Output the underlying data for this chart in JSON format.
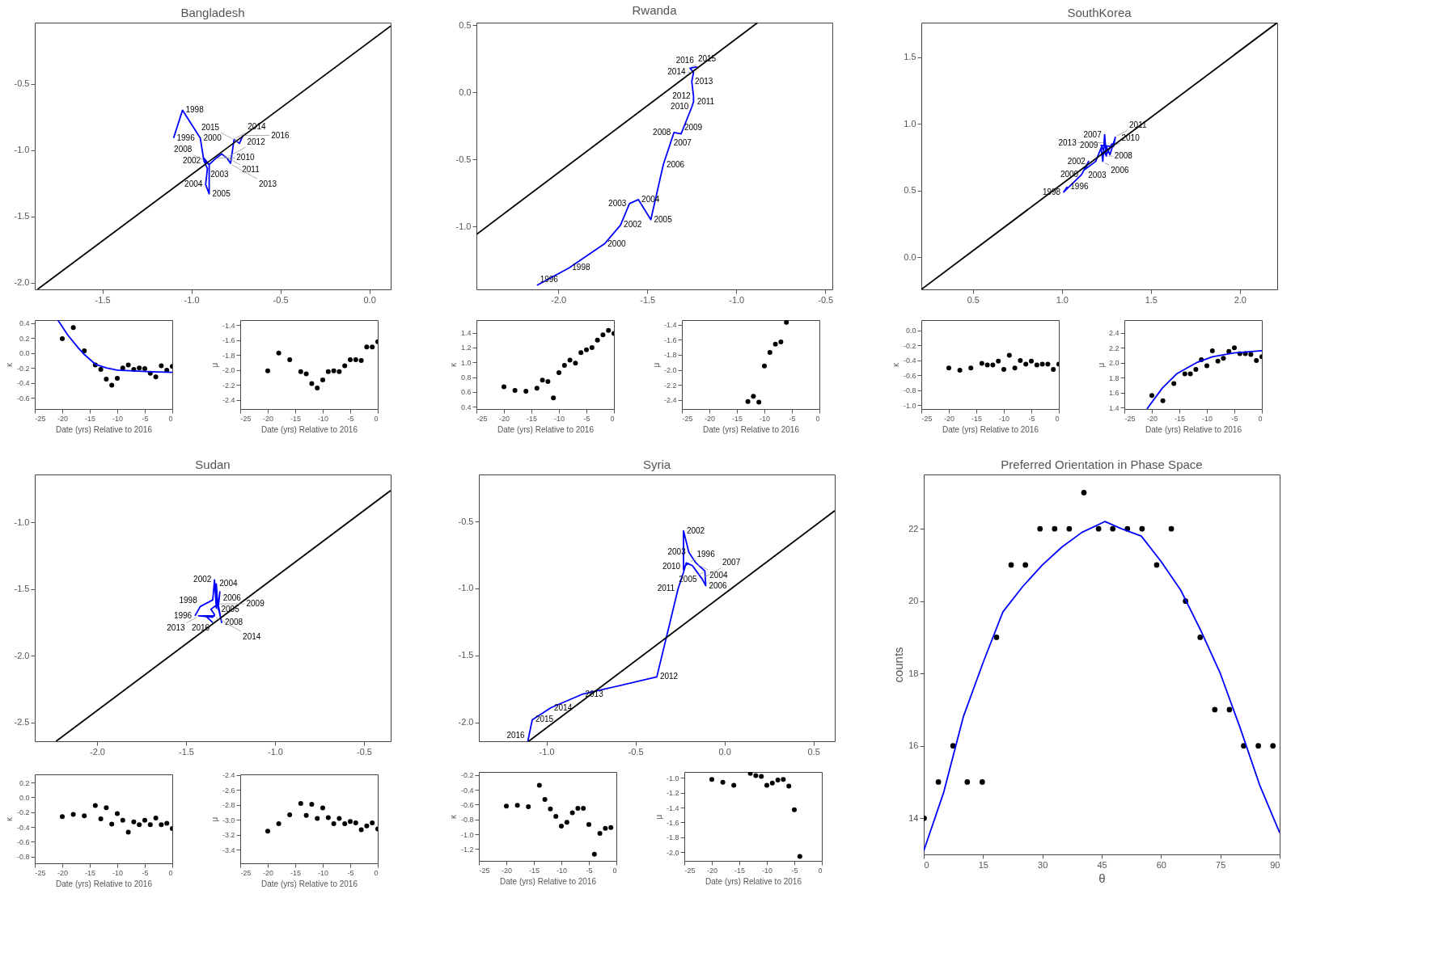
{
  "chart_data": [
    {
      "type": "line",
      "title": "Bangladesh",
      "xlim": [
        -1.88,
        0.12
      ],
      "ylim": [
        -2.05,
        -0.04
      ],
      "xticks": [
        -1.5,
        {
          "value": -1,
          "label": "-1.0"
        },
        -0.5,
        {
          "value": 0,
          "label": "0.0"
        }
      ],
      "yticks": [
        {
          "value": -2,
          "label": "-2.0"
        },
        -1.5,
        {
          "value": -1,
          "label": "-1.0"
        },
        -0.5
      ],
      "series": [
        {
          "color": "#0000ff",
          "x": [
            -1.1,
            -1.05,
            -0.95,
            -0.93,
            -0.91,
            -0.92,
            -0.9,
            -0.9,
            -0.93,
            -0.92,
            -0.9,
            -0.86,
            -0.83,
            -0.8,
            -0.78,
            -0.76,
            -0.73,
            -0.71
          ],
          "values": [
            -0.91,
            -0.7,
            -0.91,
            -1.08,
            -1.14,
            -1.26,
            -1.33,
            -1.11,
            -1.06,
            -1.09,
            -1.11,
            -1.06,
            -1.03,
            -1.06,
            -1.1,
            -0.92,
            -0.95,
            -0.89
          ]
        },
        {
          "color": "#000000",
          "x": [
            -1.865,
            0.12
          ],
          "values": [
            -2.05,
            -0.065
          ]
        }
      ],
      "annotations": [
        {
          "text": "1996",
          "x": -1.1,
          "y": -0.91
        },
        {
          "text": "1998",
          "x": -1.05,
          "y": -0.7
        },
        {
          "text": "2000",
          "x": -0.95,
          "y": -0.91
        },
        {
          "text": "2002",
          "x": -0.93,
          "y": -1.08
        },
        {
          "text": "2003",
          "x": -0.91,
          "y": -1.14
        },
        {
          "text": "2004",
          "x": -0.92,
          "y": -1.26
        },
        {
          "text": "2005",
          "x": -0.9,
          "y": -1.33
        },
        {
          "text": "2008",
          "x": -0.92,
          "y": -1.09
        },
        {
          "text": "2010",
          "x": -0.86,
          "y": -1.06
        },
        {
          "text": "2011",
          "x": -0.83,
          "y": -1.03
        },
        {
          "text": "2012",
          "x": -0.8,
          "y": -1.06
        },
        {
          "text": "2013",
          "x": -0.78,
          "y": -1.1
        },
        {
          "text": "2014",
          "x": -0.76,
          "y": -0.92
        },
        {
          "text": "2015",
          "x": -0.73,
          "y": -0.95
        },
        {
          "text": "2016",
          "x": -0.71,
          "y": -0.89
        }
      ]
    },
    {
      "type": "scatter",
      "xlabel": "Date (yrs) Relative to 2016",
      "ylabel": "κ",
      "xlim": [
        -25,
        0
      ],
      "ylim": [
        -0.75,
        0.44
      ],
      "xticks": [
        -25,
        -20,
        -15,
        -10,
        -5,
        0
      ],
      "yticks": [
        -0.6,
        -0.4,
        -0.2,
        {
          "value": 0,
          "label": "0.0"
        },
        0.2,
        0.4
      ],
      "series": [
        {
          "color": "#000000",
          "x": [
            -20,
            -18,
            -16,
            -14,
            -13,
            -12,
            -11,
            -10,
            -9,
            -8,
            -7,
            -6,
            -5,
            -4,
            -3,
            -2,
            -1,
            0
          ],
          "values": [
            0.19,
            0.34,
            0.03,
            -0.16,
            -0.22,
            -0.35,
            -0.43,
            -0.34,
            -0.2,
            -0.16,
            -0.22,
            -0.2,
            -0.21,
            -0.27,
            -0.32,
            -0.17,
            -0.23,
            -0.18
          ]
        },
        {
          "type": "line",
          "color": "#0000ff",
          "x": [
            -20.8,
            -19,
            -17,
            -16,
            -14,
            -12,
            -10,
            -7,
            -4,
            0
          ],
          "values": [
            0.44,
            0.24,
            0.06,
            -0.02,
            -0.15,
            -0.2,
            -0.23,
            -0.24,
            -0.25,
            -0.26
          ]
        }
      ]
    },
    {
      "type": "scatter",
      "xlabel": "Date (yrs) Relative to 2016",
      "ylabel": "μ",
      "xlim": [
        -25,
        0
      ],
      "ylim": [
        -2.52,
        -1.33
      ],
      "xticks": [
        -25,
        -20,
        -15,
        -10,
        -5,
        0
      ],
      "yticks": [
        -2.4,
        -2.2,
        {
          "value": -2,
          "label": "-2.0"
        },
        -1.8,
        -1.6,
        -1.4
      ],
      "series": [
        {
          "color": "#000000",
          "x": [
            -20,
            -18,
            -16,
            -14,
            -13,
            -12,
            -11,
            -10,
            -9,
            -8,
            -7,
            -6,
            -5,
            -4,
            -3,
            -2,
            -1,
            0
          ],
          "values": [
            -2.01,
            -1.77,
            -1.86,
            -2.02,
            -2.05,
            -2.18,
            -2.24,
            -2.13,
            -2.02,
            -2.01,
            -2.02,
            -1.94,
            -1.86,
            -1.86,
            -1.87,
            -1.69,
            -1.69,
            -1.62
          ]
        }
      ]
    },
    {
      "type": "line",
      "title": "Rwanda",
      "xlim": [
        -2.46,
        -0.46
      ],
      "ylim": [
        -1.47,
        0.52
      ],
      "xticks": [
        {
          "value": -2,
          "label": "-2.0"
        },
        -1.5,
        {
          "value": -1,
          "label": "-1.0"
        },
        -0.5
      ],
      "yticks": [
        {
          "value": -1,
          "label": "-1.0"
        },
        -0.5,
        {
          "value": 0,
          "label": "0.0"
        },
        0.5
      ],
      "series": [
        {
          "color": "#0000ff",
          "x": [
            -2.12,
            -1.94,
            -1.74,
            -1.65,
            -1.6,
            -1.55,
            -1.48,
            -1.41,
            -1.37,
            -1.35,
            -1.31,
            -1.25,
            -1.24,
            -1.24,
            -1.25,
            -1.24,
            -1.26,
            -1.22
          ],
          "values": [
            -1.44,
            -1.31,
            -1.13,
            -0.99,
            -0.83,
            -0.8,
            -0.95,
            -0.54,
            -0.38,
            -0.3,
            -0.31,
            -0.11,
            -0.07,
            -0.03,
            0.08,
            0.15,
            0.18,
            0.19
          ]
        },
        {
          "color": "#000000",
          "x": [
            -2.46,
            -0.88
          ],
          "values": [
            -1.06,
            0.52
          ]
        }
      ],
      "annotations": [
        {
          "text": "1996",
          "x": -2.12,
          "y": -1.44
        },
        {
          "text": "1998",
          "x": -1.94,
          "y": -1.31
        },
        {
          "text": "2000",
          "x": -1.74,
          "y": -1.13
        },
        {
          "text": "2002",
          "x": -1.65,
          "y": -0.99
        },
        {
          "text": "2003",
          "x": -1.6,
          "y": -0.83
        },
        {
          "text": "2004",
          "x": -1.55,
          "y": -0.8
        },
        {
          "text": "2005",
          "x": -1.48,
          "y": -0.95
        },
        {
          "text": "2006",
          "x": -1.41,
          "y": -0.54
        },
        {
          "text": "2007",
          "x": -1.37,
          "y": -0.38
        },
        {
          "text": "2008",
          "x": -1.35,
          "y": -0.3
        },
        {
          "text": "2009",
          "x": -1.31,
          "y": -0.31
        },
        {
          "text": "2010",
          "x": -1.25,
          "y": -0.11
        },
        {
          "text": "2011",
          "x": -1.24,
          "y": -0.07
        },
        {
          "text": "2012",
          "x": -1.24,
          "y": -0.03
        },
        {
          "text": "2013",
          "x": -1.25,
          "y": 0.08
        },
        {
          "text": "2014",
          "x": -1.24,
          "y": 0.15
        },
        {
          "text": "2015",
          "x": -1.26,
          "y": 0.18
        },
        {
          "text": "2016",
          "x": -1.22,
          "y": 0.19
        }
      ]
    },
    {
      "type": "scatter",
      "xlabel": "Date (yrs) Relative to 2016",
      "ylabel": "κ",
      "xlim": [
        -25,
        0
      ],
      "ylim": [
        0.37,
        1.57
      ],
      "xticks": [
        -25,
        -20,
        -15,
        -10,
        -5,
        0
      ],
      "yticks": [
        0.4,
        0.6,
        0.8,
        {
          "value": 1,
          "label": "1.0"
        },
        1.2,
        1.4
      ],
      "series": [
        {
          "color": "#000000",
          "x": [
            -20,
            -18,
            -16,
            -14,
            -13,
            -12,
            -11,
            -10,
            -9,
            -8,
            -7,
            -6,
            -5,
            -4,
            -3,
            -2,
            -1,
            0
          ],
          "values": [
            0.67,
            0.62,
            0.61,
            0.65,
            0.76,
            0.74,
            0.52,
            0.86,
            0.96,
            1.03,
            0.99,
            1.13,
            1.17,
            1.2,
            1.3,
            1.37,
            1.43,
            1.39
          ]
        }
      ]
    },
    {
      "type": "scatter",
      "xlabel": "Date (yrs) Relative to 2016",
      "ylabel": "μ",
      "xlim": [
        -25,
        0
      ],
      "ylim": [
        -2.52,
        -1.34
      ],
      "xticks": [
        -25,
        -20,
        -15,
        -10,
        -5,
        0
      ],
      "yticks": [
        -2.4,
        -2.2,
        {
          "value": -2,
          "label": "-2.0"
        },
        -1.8,
        -1.6,
        -1.4
      ],
      "series": [
        {
          "color": "#000000",
          "x": [
            -13,
            -12,
            -11,
            -10,
            -9,
            -8,
            -7,
            -6
          ],
          "values": [
            -2.42,
            -2.35,
            -2.43,
            -1.95,
            -1.77,
            -1.66,
            -1.63,
            -1.37
          ]
        }
      ]
    },
    {
      "type": "line",
      "title": "SouthKorea",
      "xlim": [
        0.21,
        2.21
      ],
      "ylim": [
        -0.24,
        1.76
      ],
      "xticks": [
        0.5,
        {
          "value": 1,
          "label": "1.0"
        },
        1.5,
        {
          "value": 2,
          "label": "2.0"
        }
      ],
      "yticks": [
        {
          "value": 0,
          "label": "0.0"
        },
        0.5,
        {
          "value": 1,
          "label": "1.0"
        },
        1.5
      ],
      "series": [
        {
          "color": "#0000ff",
          "x": [
            1.03,
            1.01,
            1.11,
            1.15,
            1.13,
            1.19,
            1.22,
            1.23,
            1.24,
            1.25,
            1.22,
            1.29,
            1.3,
            1.27,
            1.24,
            1.25,
            1.28,
            1.29
          ],
          "values": [
            0.53,
            0.49,
            0.62,
            0.72,
            0.66,
            0.72,
            0.82,
            0.72,
            0.92,
            0.76,
            0.84,
            0.83,
            0.9,
            0.77,
            0.86,
            0.77,
            0.85,
            0.85
          ]
        },
        {
          "color": "#000000",
          "x": [
            0.21,
            2.21
          ],
          "values": [
            -0.24,
            1.76
          ]
        }
      ],
      "annotations": [
        {
          "text": "1996",
          "x": 1.03,
          "y": 0.53
        },
        {
          "text": "1998",
          "x": 1.01,
          "y": 0.49
        },
        {
          "text": "2000",
          "x": 1.11,
          "y": 0.62
        },
        {
          "text": "2002",
          "x": 1.15,
          "y": 0.72
        },
        {
          "text": "2003",
          "x": 1.13,
          "y": 0.66
        },
        {
          "text": "2006",
          "x": 1.23,
          "y": 0.72
        },
        {
          "text": "2007",
          "x": 1.24,
          "y": 0.92
        },
        {
          "text": "2008",
          "x": 1.25,
          "y": 0.76
        },
        {
          "text": "2009",
          "x": 1.22,
          "y": 0.84
        },
        {
          "text": "2010",
          "x": 1.29,
          "y": 0.83
        },
        {
          "text": "2011",
          "x": 1.3,
          "y": 0.9
        },
        {
          "text": "2013",
          "x": 1.24,
          "y": 0.86
        }
      ]
    },
    {
      "type": "scatter",
      "xlabel": "Date (yrs) Relative to 2016",
      "ylabel": "κ",
      "xlim": [
        -25,
        0
      ],
      "ylim": [
        -1.05,
        0.14
      ],
      "xticks": [
        -25,
        -20,
        -15,
        -10,
        -5,
        0
      ],
      "yticks": [
        {
          "value": -1,
          "label": "-1.0"
        },
        -0.8,
        -0.6,
        -0.4,
        -0.2,
        {
          "value": 0,
          "label": "0.0"
        }
      ],
      "series": [
        {
          "color": "#000000",
          "x": [
            -20,
            -18,
            -16,
            -14,
            -13,
            -12,
            -11,
            -10,
            -9,
            -8,
            -7,
            -6,
            -5,
            -4,
            -3,
            -2,
            -1,
            0
          ],
          "values": [
            -0.5,
            -0.53,
            -0.5,
            -0.44,
            -0.46,
            -0.46,
            -0.41,
            -0.52,
            -0.33,
            -0.5,
            -0.4,
            -0.45,
            -0.41,
            -0.46,
            -0.45,
            -0.45,
            -0.52,
            -0.45
          ]
        }
      ]
    },
    {
      "type": "scatter",
      "xlabel": "Date (yrs) Relative to 2016",
      "ylabel": "μ",
      "xlim": [
        -25,
        0
      ],
      "ylim": [
        1.38,
        2.57
      ],
      "xticks": [
        -25,
        -20,
        -15,
        -10,
        -5,
        0
      ],
      "yticks": [
        1.4,
        1.6,
        1.8,
        {
          "value": 2,
          "label": "2.0"
        },
        2.2,
        2.4
      ],
      "series": [
        {
          "color": "#000000",
          "x": [
            -20,
            -18,
            -16,
            -14,
            -13,
            -12,
            -11,
            -10,
            -9,
            -8,
            -7,
            -6,
            -5,
            -4,
            -3,
            -2,
            -1,
            0
          ],
          "values": [
            1.56,
            1.49,
            1.72,
            1.85,
            1.85,
            1.91,
            2.04,
            1.96,
            2.16,
            2.02,
            2.06,
            2.15,
            2.2,
            2.12,
            2.12,
            2.11,
            2.03,
            2.08
          ]
        },
        {
          "type": "line",
          "color": "#0000ff",
          "x": [
            -20.9,
            -18.1,
            -15.5,
            -11.9,
            -9,
            -5.1,
            0
          ],
          "values": [
            1.38,
            1.66,
            1.85,
            2.0,
            2.08,
            2.13,
            2.16
          ]
        }
      ]
    },
    {
      "type": "line",
      "title": "Sudan",
      "xlim": [
        -2.35,
        -0.35
      ],
      "ylim": [
        -2.64,
        -0.64
      ],
      "xticks": [
        {
          "value": -2,
          "label": "-2.0"
        },
        -1.5,
        {
          "value": -1,
          "label": "-1.0"
        },
        -0.5
      ],
      "yticks": [
        -2.5,
        {
          "value": -2,
          "label": "-2.0"
        },
        -1.5,
        {
          "value": -1,
          "label": "-1.0"
        }
      ],
      "series": [
        {
          "color": "#0000ff",
          "x": [
            -1.45,
            -1.42,
            -1.35,
            -1.34,
            -1.33,
            -1.33,
            -1.32,
            -1.31,
            -1.32,
            -1.3,
            -1.32,
            -1.36,
            -1.34,
            -1.35,
            -1.43,
            -1.34,
            -1.39,
            -1.35
          ],
          "values": [
            -1.7,
            -1.63,
            -1.58,
            -1.43,
            -1.64,
            -1.46,
            -1.65,
            -1.52,
            -1.63,
            -1.75,
            -1.61,
            -1.65,
            -1.69,
            -1.71,
            -1.7,
            -1.7,
            -1.7,
            -1.75
          ]
        },
        {
          "color": "#000000",
          "x": [
            -2.23,
            -0.35
          ],
          "values": [
            -2.64,
            -0.76
          ]
        }
      ],
      "annotations": [
        {
          "text": "1996",
          "x": -1.45,
          "y": -1.7
        },
        {
          "text": "1998",
          "x": -1.42,
          "y": -1.63
        },
        {
          "text": "2002",
          "x": -1.34,
          "y": -1.43
        },
        {
          "text": "2004",
          "x": -1.33,
          "y": -1.46
        },
        {
          "text": "2005",
          "x": -1.32,
          "y": -1.65
        },
        {
          "text": "2006",
          "x": -1.31,
          "y": -1.52
        },
        {
          "text": "2008",
          "x": -1.3,
          "y": -1.75
        },
        {
          "text": "2009",
          "x": -1.32,
          "y": -1.61
        },
        {
          "text": "2013",
          "x": -1.43,
          "y": -1.7
        },
        {
          "text": "2014",
          "x": -1.34,
          "y": -1.7
        },
        {
          "text": "2016",
          "x": -1.35,
          "y": -1.75
        }
      ]
    },
    {
      "type": "scatter",
      "xlabel": "Date (yrs) Relative to 2016",
      "ylabel": "κ",
      "xlim": [
        -25,
        0
      ],
      "ylim": [
        -0.89,
        0.31
      ],
      "xticks": [
        -25,
        -20,
        -15,
        -10,
        -5,
        0
      ],
      "yticks": [
        -0.8,
        -0.6,
        -0.4,
        -0.2,
        {
          "value": 0,
          "label": "0.0"
        },
        0.2
      ],
      "series": [
        {
          "color": "#000000",
          "x": [
            -20,
            -18,
            -16,
            -14,
            -13,
            -12,
            -11,
            -10,
            -9,
            -8,
            -7,
            -6,
            -5,
            -4,
            -3,
            -2,
            -1,
            0
          ],
          "values": [
            -0.26,
            -0.23,
            -0.25,
            -0.11,
            -0.29,
            -0.14,
            -0.36,
            -0.22,
            -0.31,
            -0.47,
            -0.33,
            -0.37,
            -0.31,
            -0.37,
            -0.28,
            -0.37,
            -0.35,
            -0.42
          ]
        }
      ]
    },
    {
      "type": "scatter",
      "xlabel": "Date (yrs) Relative to 2016",
      "ylabel": "μ",
      "xlim": [
        -25,
        0
      ],
      "ylim": [
        -3.58,
        -2.39
      ],
      "xticks": [
        -25,
        -20,
        -15,
        -10,
        -5,
        0
      ],
      "yticks": [
        -3.4,
        -3.2,
        {
          "value": -3,
          "label": "-3.0"
        },
        -2.8,
        -2.6,
        -2.4
      ],
      "series": [
        {
          "color": "#000000",
          "x": [
            -20,
            -18,
            -16,
            -14,
            -13,
            -12,
            -11,
            -10,
            -9,
            -8,
            -7,
            -6,
            -5,
            -4,
            -3,
            -2,
            -1,
            0
          ],
          "values": [
            -3.15,
            -3.05,
            -2.93,
            -2.78,
            -2.94,
            -2.79,
            -2.98,
            -2.84,
            -2.97,
            -3.05,
            -2.98,
            -3.05,
            -3.02,
            -3.04,
            -3.13,
            -3.08,
            -3.04,
            -3.12
          ]
        }
      ]
    },
    {
      "type": "line",
      "title": "Syria",
      "xlim": [
        -1.38,
        0.62
      ],
      "ylim": [
        -2.14,
        -0.15
      ],
      "xticks": [
        {
          "value": -1,
          "label": "-1.0"
        },
        -0.5,
        {
          "value": 0,
          "label": "0.0"
        },
        0.5
      ],
      "yticks": [
        {
          "value": -2,
          "label": "-2.0"
        },
        -1.5,
        {
          "value": -1,
          "label": "-1.0"
        },
        -0.5
      ],
      "series": [
        {
          "color": "#0000ff",
          "x": [
            -0.2,
            -0.22,
            -0.23,
            -0.23,
            -0.2,
            -0.16,
            -0.11,
            -0.105,
            -0.125,
            -0.18,
            -0.215,
            -0.23,
            -0.26,
            -0.38,
            -0.8,
            -0.975,
            -1.08,
            -1.105
          ],
          "values": [
            -0.81,
            -0.83,
            -0.86,
            -0.57,
            -0.73,
            -0.81,
            -0.87,
            -0.98,
            -0.93,
            -0.83,
            -0.81,
            -0.88,
            -1.0,
            -1.66,
            -1.79,
            -1.89,
            -1.98,
            -2.14
          ]
        },
        {
          "color": "#000000",
          "x": [
            -1.1,
            0.62
          ],
          "values": [
            -2.14,
            -0.42
          ]
        }
      ],
      "annotations": [
        {
          "text": "1996",
          "x": -0.2,
          "y": -0.81
        },
        {
          "text": "2002",
          "x": -0.23,
          "y": -0.57
        },
        {
          "text": "2003",
          "x": -0.2,
          "y": -0.73
        },
        {
          "text": "2004",
          "x": -0.16,
          "y": -0.81
        },
        {
          "text": "2005",
          "x": -0.11,
          "y": -0.87
        },
        {
          "text": "2006",
          "x": -0.105,
          "y": -0.98
        },
        {
          "text": "2007",
          "x": -0.125,
          "y": -0.93
        },
        {
          "text": "2010",
          "x": -0.23,
          "y": -0.88
        },
        {
          "text": "2011",
          "x": -0.26,
          "y": -1.0
        },
        {
          "text": "2012",
          "x": -0.38,
          "y": -1.66
        },
        {
          "text": "2013",
          "x": -0.8,
          "y": -1.79
        },
        {
          "text": "2014",
          "x": -0.975,
          "y": -1.89
        },
        {
          "text": "2015",
          "x": -1.08,
          "y": -1.98
        },
        {
          "text": "2016",
          "x": -1.105,
          "y": -2.14
        }
      ]
    },
    {
      "type": "scatter",
      "xlabel": "Date (yrs) Relative to 2016",
      "ylabel": "κ",
      "xlim": [
        -25,
        0
      ],
      "ylim": [
        -1.36,
        -0.16
      ],
      "xticks": [
        -25,
        -20,
        -15,
        -10,
        -5,
        0
      ],
      "yticks": [
        -1.2,
        {
          "value": -1,
          "label": "-1.0"
        },
        -0.8,
        -0.6,
        -0.4,
        -0.2
      ],
      "series": [
        {
          "color": "#000000",
          "x": [
            -20,
            -18,
            -16,
            -14,
            -13,
            -12,
            -11,
            -10,
            -9,
            -8,
            -7,
            -6,
            -5,
            -4,
            -3,
            -2,
            -1
          ],
          "values": [
            -0.62,
            -0.61,
            -0.63,
            -0.34,
            -0.53,
            -0.66,
            -0.76,
            -0.89,
            -0.84,
            -0.71,
            -0.65,
            -0.65,
            -0.87,
            -1.27,
            -0.99,
            -0.92,
            -0.91
          ]
        }
      ]
    },
    {
      "type": "scatter",
      "xlabel": "Date (yrs) Relative to 2016",
      "ylabel": "μ",
      "xlim": [
        -25,
        0
      ],
      "ylim": [
        -2.12,
        -0.92
      ],
      "xticks": [
        -25,
        -20,
        -15,
        -10,
        -5,
        0
      ],
      "yticks": [
        {
          "value": -2,
          "label": "-2.0"
        },
        -1.8,
        -1.6,
        -1.4,
        -1.2,
        {
          "value": -1,
          "label": "-1.0"
        }
      ],
      "series": [
        {
          "color": "#000000",
          "x": [
            -20,
            -18,
            -16,
            -13,
            -12,
            -11,
            -10,
            -9,
            -8,
            -7,
            -6,
            -5,
            -4
          ],
          "values": [
            -1.02,
            -1.06,
            -1.1,
            -0.94,
            -0.97,
            -0.98,
            -1.1,
            -1.07,
            -1.03,
            -1.02,
            -1.11,
            -1.43,
            -2.06
          ]
        }
      ]
    },
    {
      "type": "scatter",
      "title": "Preferred Orientation in Phase Space",
      "xlabel": "θ",
      "ylabel": "counts",
      "xlim": [
        0,
        90
      ],
      "ylim": [
        13,
        23.5
      ],
      "xticks": [
        0,
        15,
        30,
        45,
        60,
        75,
        90
      ],
      "yticks": [
        14,
        16,
        18,
        20,
        22
      ],
      "series": [
        {
          "color": "#000000",
          "x": [
            0.1,
            3.7,
            7.4,
            11.0,
            14.8,
            18.4,
            22.1,
            25.7,
            29.4,
            33.1,
            36.8,
            40.5,
            44.2,
            47.8,
            51.5,
            55.2,
            58.9,
            62.6,
            66.2,
            69.9,
            73.6,
            77.3,
            80.9,
            84.6,
            88.3
          ],
          "values": [
            14,
            15,
            16,
            15,
            15,
            19,
            21,
            21,
            22,
            22,
            22,
            23,
            22,
            22,
            22,
            22,
            21,
            22,
            20,
            19,
            17,
            17,
            16,
            16,
            16
          ]
        },
        {
          "type": "line",
          "color": "#0000ff",
          "x": [
            0,
            5,
            10,
            15,
            20,
            25,
            30,
            35,
            40,
            45.8,
            50,
            55,
            60,
            65,
            70,
            75,
            80,
            85,
            90
          ],
          "values": [
            13.1,
            14.7,
            16.8,
            18.3,
            19.7,
            20.4,
            21.0,
            21.5,
            21.9,
            22.2,
            22.0,
            21.8,
            21.1,
            20.3,
            19.2,
            18.0,
            16.5,
            14.9,
            13.6
          ]
        }
      ]
    }
  ]
}
